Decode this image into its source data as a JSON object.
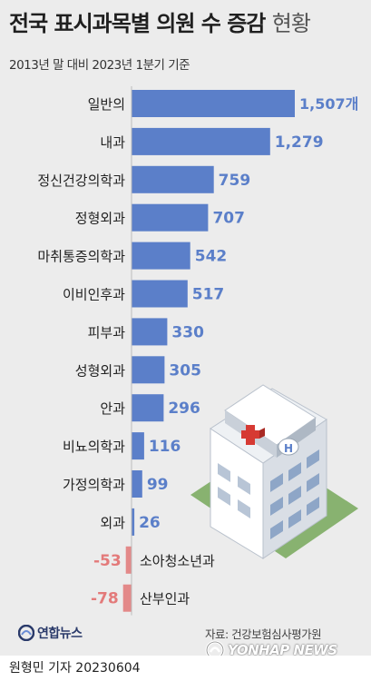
{
  "header": {
    "title_main": "전국 표시과목별 의원 수 증감",
    "title_suffix": "현황",
    "subtitle": "2013년 말 대비 2023년 1분기 기준"
  },
  "chart_data": {
    "type": "bar",
    "orientation": "horizontal",
    "categories": [
      "일반의",
      "내과",
      "정신건강의학과",
      "정형외과",
      "마취통증의학과",
      "이비인후과",
      "피부과",
      "성형외과",
      "안과",
      "비뇨의학과",
      "가정의학과",
      "외과",
      "소아청소년과",
      "산부인과"
    ],
    "values": [
      1507,
      1279,
      759,
      707,
      542,
      517,
      330,
      305,
      296,
      116,
      99,
      26,
      -53,
      -78
    ],
    "value_labels": [
      "1,507개",
      "1,279",
      "759",
      "707",
      "542",
      "517",
      "330",
      "305",
      "296",
      "116",
      "99",
      "26",
      "-53",
      "-78"
    ],
    "colors": {
      "positive": "#5b7fc9",
      "negative": "#e38989",
      "positive_label": "#5b7fc9",
      "negative_label": "#e37a7a"
    },
    "grid": false,
    "legend": "none"
  },
  "illustration": {
    "icon": "hospital-building-icon",
    "sign": "H"
  },
  "source": "자료: 건강보험심사평가원",
  "logo": {
    "text": "연합뉴스"
  },
  "footer": {
    "reporter": "원형민 기자  20230604",
    "watermark": "YONHAP NEWS"
  }
}
